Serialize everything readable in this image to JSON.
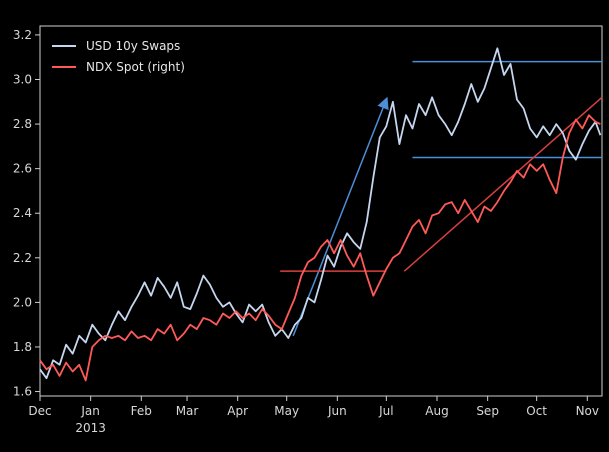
{
  "chart_data": {
    "type": "line",
    "title": "",
    "xlabel": "",
    "ylabel": "",
    "ylim": [
      1.58,
      3.24
    ],
    "y_ticks": [
      1.6,
      1.8,
      2.0,
      2.2,
      2.4,
      2.6,
      2.8,
      3.0,
      3.2
    ],
    "y_tick_labels": [
      "1.6",
      "1.8",
      "2.0",
      "2.2",
      "2.4",
      "2.6",
      "2.8",
      "3.0",
      "3.2"
    ],
    "x_ticks": [
      {
        "label": "Dec",
        "date": "2012-12-01"
      },
      {
        "label": "Jan",
        "sublabel": "2013",
        "date": "2013-01-01"
      },
      {
        "label": "Feb",
        "date": "2013-02-01"
      },
      {
        "label": "Mar",
        "date": "2013-03-01"
      },
      {
        "label": "Apr",
        "date": "2013-04-01"
      },
      {
        "label": "May",
        "date": "2013-05-01"
      },
      {
        "label": "Jun",
        "date": "2013-06-01"
      },
      {
        "label": "Jul",
        "date": "2013-07-01"
      },
      {
        "label": "Aug",
        "date": "2013-08-01"
      },
      {
        "label": "Sep",
        "date": "2013-09-01"
      },
      {
        "label": "Oct",
        "date": "2013-10-01"
      },
      {
        "label": "Nov",
        "date": "2013-11-01"
      }
    ],
    "xlim": [
      "2012-12-01",
      "2013-11-10"
    ],
    "legend_placement": "top-left",
    "grid": false,
    "series": [
      {
        "name": "USD 10y Swaps",
        "color": "#c5d6ee",
        "points": [
          [
            "2012-12-01",
            1.7
          ],
          [
            "2012-12-05",
            1.66
          ],
          [
            "2012-12-09",
            1.74
          ],
          [
            "2012-12-13",
            1.72
          ],
          [
            "2012-12-17",
            1.81
          ],
          [
            "2012-12-21",
            1.77
          ],
          [
            "2012-12-25",
            1.85
          ],
          [
            "2012-12-29",
            1.82
          ],
          [
            "2013-01-02",
            1.9
          ],
          [
            "2013-01-06",
            1.86
          ],
          [
            "2013-01-10",
            1.83
          ],
          [
            "2013-01-14",
            1.9
          ],
          [
            "2013-01-18",
            1.96
          ],
          [
            "2013-01-22",
            1.92
          ],
          [
            "2013-01-26",
            1.98
          ],
          [
            "2013-01-30",
            2.03
          ],
          [
            "2013-02-03",
            2.09
          ],
          [
            "2013-02-07",
            2.03
          ],
          [
            "2013-02-11",
            2.11
          ],
          [
            "2013-02-15",
            2.07
          ],
          [
            "2013-02-19",
            2.02
          ],
          [
            "2013-02-23",
            2.09
          ],
          [
            "2013-02-27",
            1.98
          ],
          [
            "2013-03-03",
            1.97
          ],
          [
            "2013-03-07",
            2.04
          ],
          [
            "2013-03-11",
            2.12
          ],
          [
            "2013-03-15",
            2.08
          ],
          [
            "2013-03-19",
            2.02
          ],
          [
            "2013-03-23",
            1.98
          ],
          [
            "2013-03-27",
            2.0
          ],
          [
            "2013-03-31",
            1.95
          ],
          [
            "2013-04-04",
            1.91
          ],
          [
            "2013-04-08",
            1.99
          ],
          [
            "2013-04-12",
            1.96
          ],
          [
            "2013-04-16",
            1.99
          ],
          [
            "2013-04-20",
            1.91
          ],
          [
            "2013-04-24",
            1.85
          ],
          [
            "2013-04-28",
            1.88
          ],
          [
            "2013-05-02",
            1.84
          ],
          [
            "2013-05-06",
            1.9
          ],
          [
            "2013-05-10",
            1.93
          ],
          [
            "2013-05-14",
            2.02
          ],
          [
            "2013-05-18",
            2.0
          ],
          [
            "2013-05-22",
            2.1
          ],
          [
            "2013-05-26",
            2.21
          ],
          [
            "2013-05-30",
            2.16
          ],
          [
            "2013-06-03",
            2.25
          ],
          [
            "2013-06-07",
            2.31
          ],
          [
            "2013-06-11",
            2.27
          ],
          [
            "2013-06-15",
            2.24
          ],
          [
            "2013-06-19",
            2.36
          ],
          [
            "2013-06-23",
            2.56
          ],
          [
            "2013-06-27",
            2.74
          ],
          [
            "2013-07-01",
            2.79
          ],
          [
            "2013-07-05",
            2.9
          ],
          [
            "2013-07-09",
            2.71
          ],
          [
            "2013-07-13",
            2.84
          ],
          [
            "2013-07-17",
            2.78
          ],
          [
            "2013-07-21",
            2.89
          ],
          [
            "2013-07-25",
            2.84
          ],
          [
            "2013-07-29",
            2.92
          ],
          [
            "2013-08-02",
            2.84
          ],
          [
            "2013-08-06",
            2.8
          ],
          [
            "2013-08-10",
            2.75
          ],
          [
            "2013-08-14",
            2.81
          ],
          [
            "2013-08-18",
            2.89
          ],
          [
            "2013-08-22",
            2.98
          ],
          [
            "2013-08-26",
            2.9
          ],
          [
            "2013-08-30",
            2.96
          ],
          [
            "2013-09-03",
            3.05
          ],
          [
            "2013-09-07",
            3.14
          ],
          [
            "2013-09-11",
            3.02
          ],
          [
            "2013-09-15",
            3.07
          ],
          [
            "2013-09-19",
            2.91
          ],
          [
            "2013-09-23",
            2.87
          ],
          [
            "2013-09-27",
            2.78
          ],
          [
            "2013-10-01",
            2.74
          ],
          [
            "2013-10-05",
            2.79
          ],
          [
            "2013-10-09",
            2.75
          ],
          [
            "2013-10-13",
            2.8
          ],
          [
            "2013-10-17",
            2.76
          ],
          [
            "2013-10-21",
            2.68
          ],
          [
            "2013-10-25",
            2.64
          ],
          [
            "2013-10-29",
            2.71
          ],
          [
            "2013-11-02",
            2.77
          ],
          [
            "2013-11-06",
            2.81
          ],
          [
            "2013-11-09",
            2.75
          ]
        ]
      },
      {
        "name": "NDX Spot (right)",
        "color": "#ff5a58",
        "points": [
          [
            "2012-12-01",
            1.74
          ],
          [
            "2012-12-05",
            1.7
          ],
          [
            "2012-12-09",
            1.72
          ],
          [
            "2012-12-13",
            1.67
          ],
          [
            "2012-12-17",
            1.73
          ],
          [
            "2012-12-21",
            1.69
          ],
          [
            "2012-12-25",
            1.72
          ],
          [
            "2012-12-29",
            1.65
          ],
          [
            "2013-01-02",
            1.8
          ],
          [
            "2013-01-06",
            1.83
          ],
          [
            "2013-01-10",
            1.85
          ],
          [
            "2013-01-14",
            1.84
          ],
          [
            "2013-01-18",
            1.85
          ],
          [
            "2013-01-22",
            1.83
          ],
          [
            "2013-01-26",
            1.87
          ],
          [
            "2013-01-30",
            1.84
          ],
          [
            "2013-02-03",
            1.85
          ],
          [
            "2013-02-07",
            1.83
          ],
          [
            "2013-02-11",
            1.88
          ],
          [
            "2013-02-15",
            1.86
          ],
          [
            "2013-02-19",
            1.9
          ],
          [
            "2013-02-23",
            1.83
          ],
          [
            "2013-02-27",
            1.86
          ],
          [
            "2013-03-03",
            1.9
          ],
          [
            "2013-03-07",
            1.88
          ],
          [
            "2013-03-11",
            1.93
          ],
          [
            "2013-03-15",
            1.92
          ],
          [
            "2013-03-19",
            1.9
          ],
          [
            "2013-03-23",
            1.95
          ],
          [
            "2013-03-27",
            1.93
          ],
          [
            "2013-03-31",
            1.96
          ],
          [
            "2013-04-04",
            1.93
          ],
          [
            "2013-04-08",
            1.95
          ],
          [
            "2013-04-12",
            1.92
          ],
          [
            "2013-04-16",
            1.97
          ],
          [
            "2013-04-20",
            1.94
          ],
          [
            "2013-04-24",
            1.9
          ],
          [
            "2013-04-28",
            1.88
          ],
          [
            "2013-05-02",
            1.95
          ],
          [
            "2013-05-06",
            2.02
          ],
          [
            "2013-05-10",
            2.12
          ],
          [
            "2013-05-14",
            2.18
          ],
          [
            "2013-05-18",
            2.2
          ],
          [
            "2013-05-22",
            2.25
          ],
          [
            "2013-05-26",
            2.28
          ],
          [
            "2013-05-30",
            2.22
          ],
          [
            "2013-06-03",
            2.28
          ],
          [
            "2013-06-07",
            2.21
          ],
          [
            "2013-06-11",
            2.16
          ],
          [
            "2013-06-15",
            2.22
          ],
          [
            "2013-06-19",
            2.12
          ],
          [
            "2013-06-23",
            2.03
          ],
          [
            "2013-06-27",
            2.09
          ],
          [
            "2013-07-01",
            2.15
          ],
          [
            "2013-07-05",
            2.2
          ],
          [
            "2013-07-09",
            2.22
          ],
          [
            "2013-07-13",
            2.28
          ],
          [
            "2013-07-17",
            2.34
          ],
          [
            "2013-07-21",
            2.37
          ],
          [
            "2013-07-25",
            2.31
          ],
          [
            "2013-07-29",
            2.39
          ],
          [
            "2013-08-02",
            2.4
          ],
          [
            "2013-08-06",
            2.44
          ],
          [
            "2013-08-10",
            2.45
          ],
          [
            "2013-08-14",
            2.4
          ],
          [
            "2013-08-18",
            2.46
          ],
          [
            "2013-08-22",
            2.41
          ],
          [
            "2013-08-26",
            2.36
          ],
          [
            "2013-08-30",
            2.43
          ],
          [
            "2013-09-03",
            2.41
          ],
          [
            "2013-09-07",
            2.45
          ],
          [
            "2013-09-11",
            2.5
          ],
          [
            "2013-09-15",
            2.54
          ],
          [
            "2013-09-19",
            2.59
          ],
          [
            "2013-09-23",
            2.56
          ],
          [
            "2013-09-27",
            2.62
          ],
          [
            "2013-10-01",
            2.59
          ],
          [
            "2013-10-05",
            2.62
          ],
          [
            "2013-10-09",
            2.55
          ],
          [
            "2013-10-13",
            2.49
          ],
          [
            "2013-10-17",
            2.65
          ],
          [
            "2013-10-21",
            2.76
          ],
          [
            "2013-10-25",
            2.82
          ],
          [
            "2013-10-29",
            2.78
          ],
          [
            "2013-11-02",
            2.84
          ],
          [
            "2013-11-06",
            2.81
          ],
          [
            "2013-11-09",
            2.8
          ]
        ]
      }
    ],
    "annotations": [
      {
        "kind": "arrow",
        "color": "#4c8fd6",
        "from": [
          "2013-05-05",
          1.85
        ],
        "to": [
          "2013-07-01",
          2.91
        ]
      },
      {
        "kind": "hline",
        "color": "#4c8fd6",
        "y": 3.08,
        "from": "2013-07-17",
        "to": "2013-11-10"
      },
      {
        "kind": "hline",
        "color": "#4c8fd6",
        "y": 2.65,
        "from": "2013-07-17",
        "to": "2013-11-10"
      },
      {
        "kind": "hline",
        "color": "#d94040",
        "y": 2.14,
        "from": "2013-04-27",
        "to": "2013-07-01"
      },
      {
        "kind": "line",
        "color": "#d94040",
        "from": [
          "2013-07-12",
          2.14
        ],
        "to": [
          "2013-11-10",
          2.92
        ]
      }
    ]
  }
}
